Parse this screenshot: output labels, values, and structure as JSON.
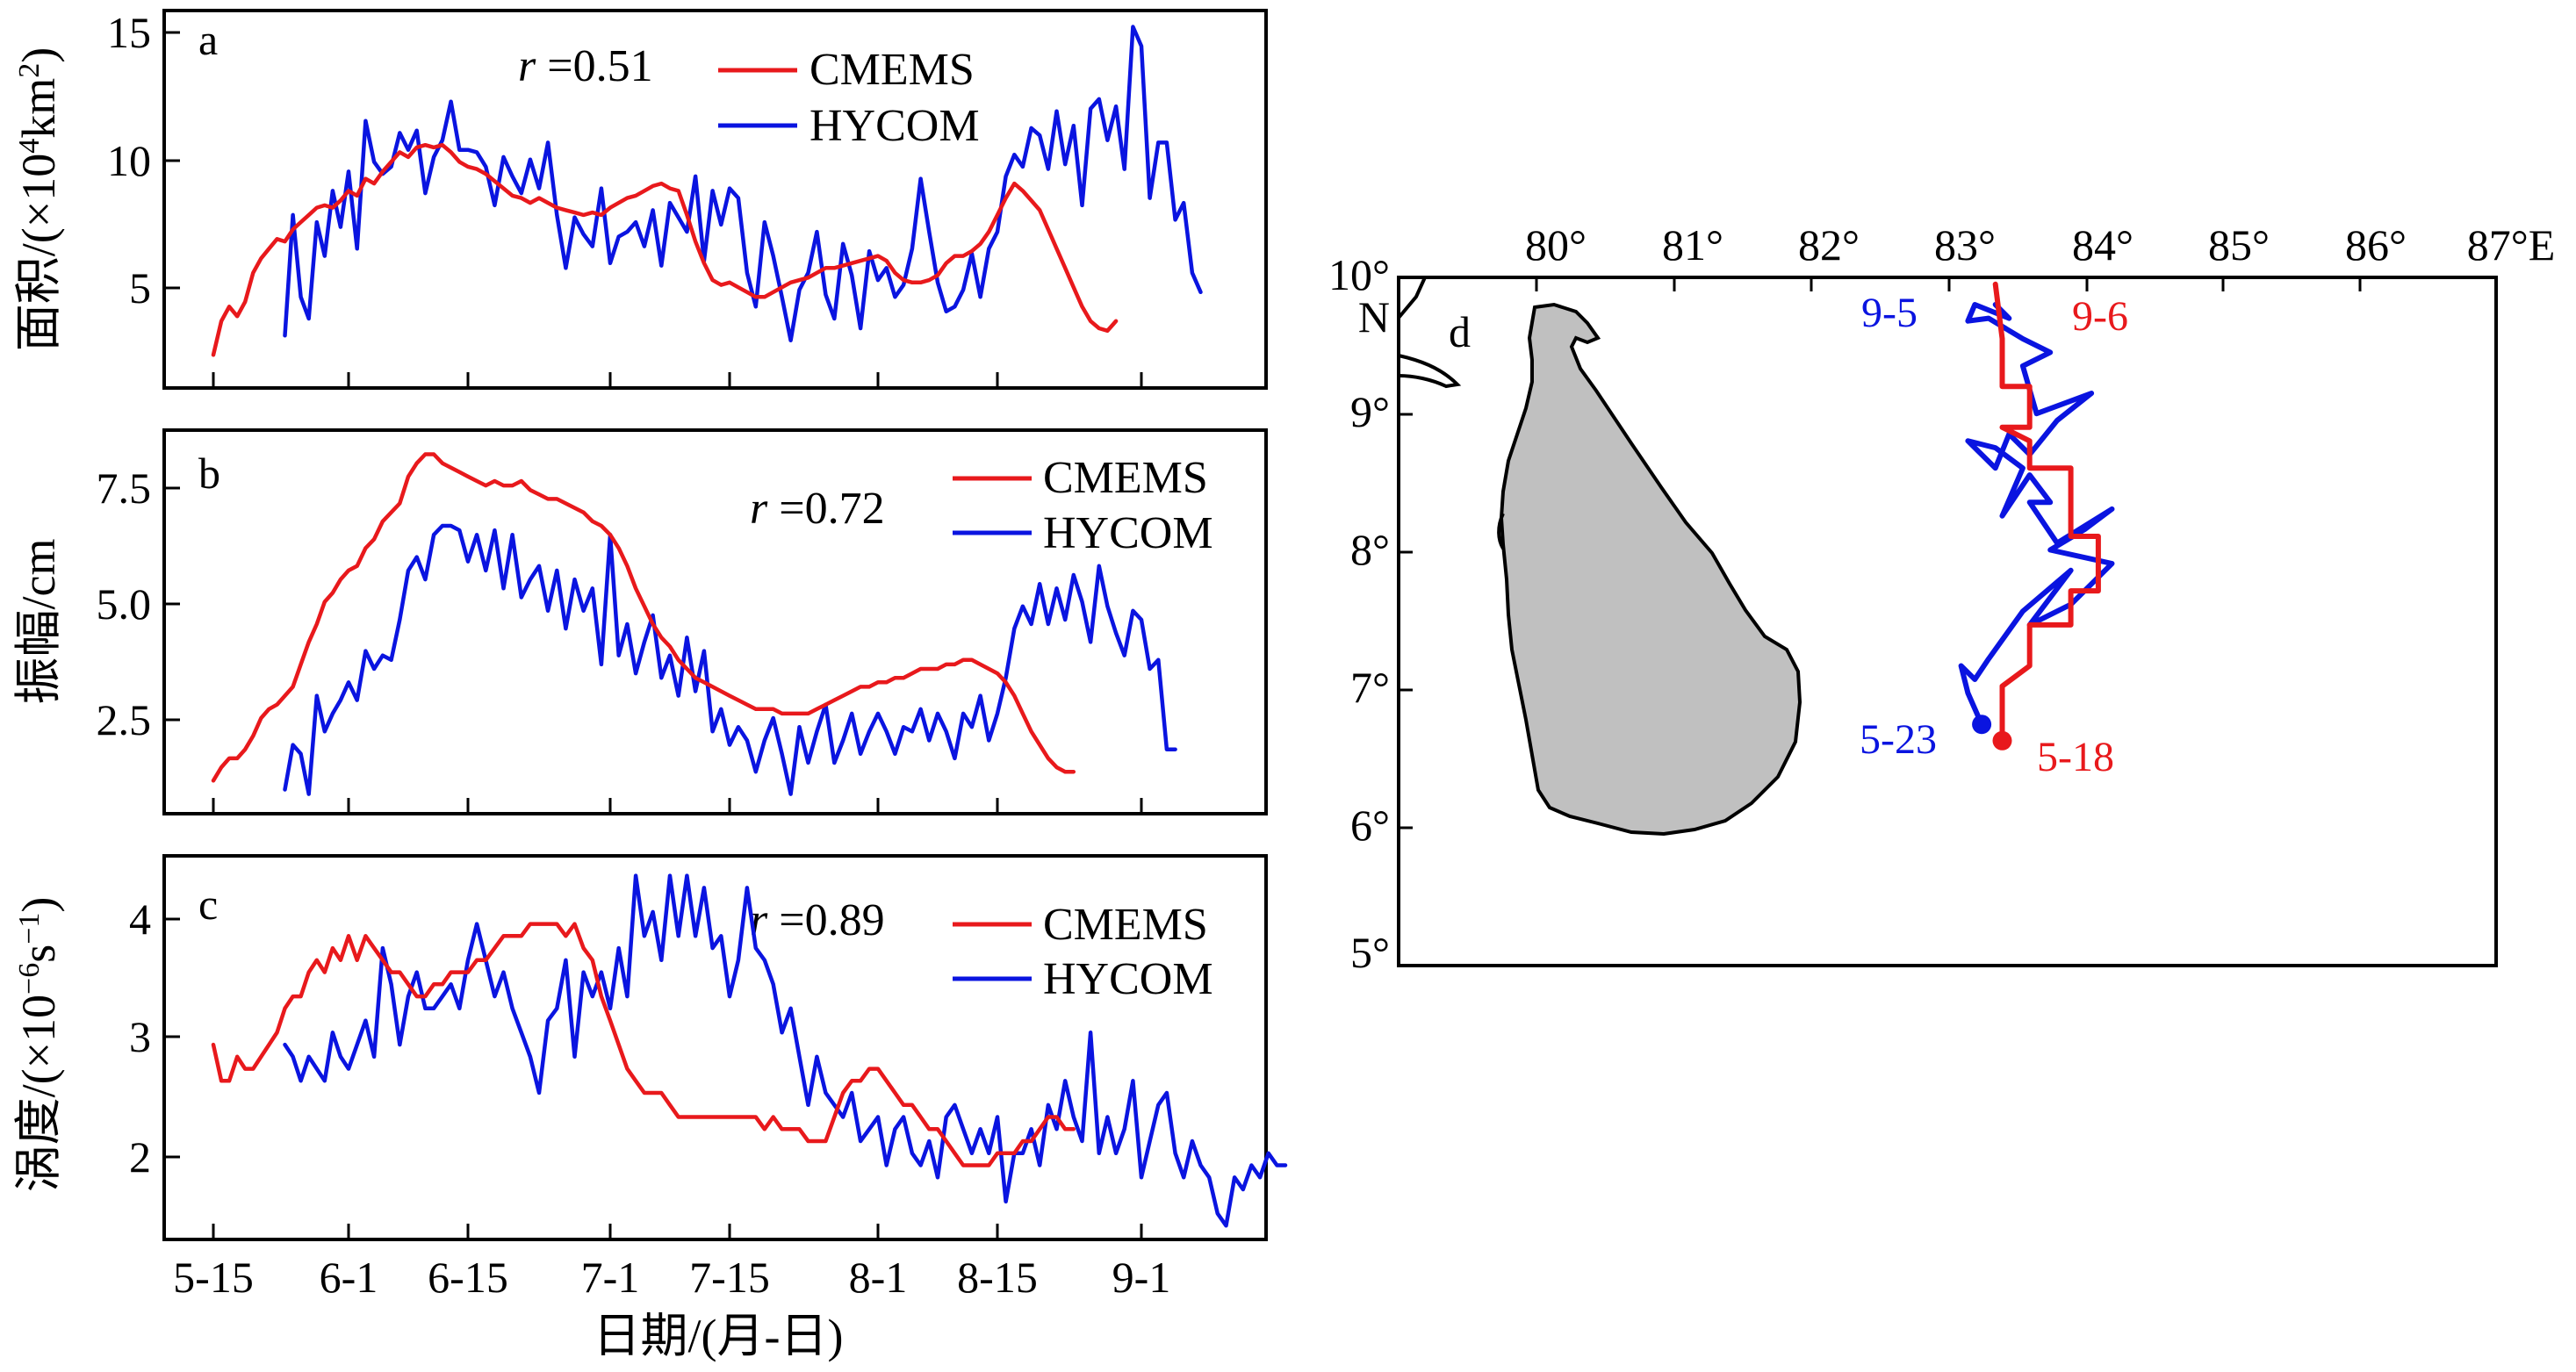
{
  "chart_data": [
    {
      "panel": "a",
      "type": "line",
      "ylabel": "面积/(×10⁴km²)",
      "ylabel_parts": {
        "pre": "面积/(×10",
        "sup": "4",
        "mid": "km",
        "sup2": "2",
        "post": ")"
      },
      "ylim": [
        0.5,
        16
      ],
      "yticks": [
        5,
        10,
        15
      ],
      "xticks": [
        "5-15",
        "6-1",
        "6-15",
        "7-1",
        "7-15",
        "8-1",
        "8-15",
        "9-1"
      ],
      "correlation": {
        "symbol": "r",
        "text": " =0.51"
      },
      "series": [
        {
          "name": "CMEMS",
          "color": "#e8191c",
          "start_day": 15,
          "values": [
            1.8,
            3.2,
            3.8,
            3.4,
            4,
            5.2,
            5.8,
            6.2,
            6.6,
            6.5,
            7,
            7.3,
            7.6,
            7.9,
            8,
            7.9,
            8.2,
            8.6,
            8.4,
            9.1,
            8.9,
            9.4,
            9.8,
            10.2,
            10,
            10.4,
            10.5,
            10.4,
            10.5,
            10.2,
            9.8,
            9.6,
            9.5,
            9.3,
            9.0,
            8.7,
            8.4,
            8.3,
            8.1,
            8.3,
            8.1,
            7.9,
            7.8,
            7.7,
            7.6,
            7.7,
            7.6,
            7.9,
            8.1,
            8.3,
            8.4,
            8.6,
            8.8,
            8.9,
            8.7,
            8.6,
            7.6,
            6.5,
            5.6,
            4.9,
            4.7,
            4.8,
            4.6,
            4.4,
            4.2,
            4.2,
            4.4,
            4.6,
            4.8,
            4.9,
            5,
            5.2,
            5.4,
            5.4,
            5.5,
            5.6,
            5.7,
            5.8,
            5.9,
            5.7,
            5.2,
            4.9,
            4.8,
            4.8,
            4.9,
            5.1,
            5.6,
            5.9,
            5.9,
            6.1,
            6.4,
            6.9,
            7.6,
            8.3,
            8.9,
            8.6,
            8.2,
            7.8,
            7,
            6.2,
            5.4,
            4.6,
            3.8,
            3.2,
            2.9,
            2.8,
            3.2
          ]
        },
        {
          "name": "HYCOM",
          "color": "#0a14e0",
          "start_day": 24,
          "values": [
            2.6,
            7.6,
            4.2,
            3.3,
            7.3,
            5.9,
            8.6,
            7.1,
            9.4,
            6.2,
            11.5,
            9.8,
            9.3,
            9.6,
            11.0,
            10.3,
            11.1,
            8.5,
            10.0,
            10.7,
            12.3,
            10.3,
            10.3,
            10.2,
            9.6,
            8.0,
            10.0,
            9.2,
            8.5,
            9.9,
            8.7,
            10.6,
            7.6,
            5.4,
            7.5,
            6.8,
            6.3,
            8.7,
            5.6,
            6.7,
            6.9,
            7.3,
            6.3,
            7.8,
            5.5,
            8.1,
            7.5,
            6.9,
            9.2,
            5.7,
            8.6,
            7.2,
            8.7,
            8.3,
            5.2,
            3.8,
            7.3,
            5.9,
            4.2,
            2.4,
            4.5,
            5.2,
            6.9,
            4.3,
            3.3,
            6.4,
            5.1,
            2.9,
            6.1,
            4.9,
            5.4,
            4.2,
            4.7,
            6.2,
            9.1,
            6.9,
            4.8,
            3.6,
            3.8,
            4.5,
            6.0,
            4.2,
            6.2,
            6.9,
            9.2,
            10.1,
            9.6,
            11.2,
            10.9,
            9.5,
            11.9,
            9.7,
            11.3,
            8.0,
            12.0,
            12.4,
            10.7,
            12.1,
            9.5,
            15.4,
            14.6,
            8.3,
            10.6,
            10.6,
            7.4,
            8.1,
            5.2,
            4.4
          ]
        }
      ]
    },
    {
      "panel": "b",
      "type": "line",
      "ylabel": "振幅/cm",
      "ylim": [
        0.4,
        8.9
      ],
      "yticks": [
        2.5,
        5.0,
        7.5
      ],
      "ytick_labels": [
        "2.5",
        "5.0",
        "7.5"
      ],
      "xticks": [
        "5-15",
        "6-1",
        "6-15",
        "7-1",
        "7-15",
        "8-1",
        "8-15",
        "9-1"
      ],
      "correlation": {
        "symbol": "r",
        "text": " =0.72"
      },
      "series": [
        {
          "name": "CMEMS",
          "color": "#e8191c",
          "start_day": 15,
          "values": [
            1.1,
            1.4,
            1.6,
            1.6,
            1.8,
            2.1,
            2.5,
            2.7,
            2.8,
            3.0,
            3.2,
            3.7,
            4.2,
            4.6,
            5.1,
            5.3,
            5.6,
            5.8,
            5.9,
            6.3,
            6.5,
            6.9,
            7.1,
            7.3,
            7.9,
            8.2,
            8.4,
            8.4,
            8.2,
            8.1,
            8.0,
            7.9,
            7.8,
            7.7,
            7.8,
            7.7,
            7.7,
            7.8,
            7.6,
            7.5,
            7.4,
            7.4,
            7.3,
            7.2,
            7.1,
            6.9,
            6.8,
            6.6,
            6.3,
            5.9,
            5.4,
            5.0,
            4.6,
            4.3,
            4.1,
            3.8,
            3.6,
            3.4,
            3.3,
            3.2,
            3.1,
            3.0,
            2.9,
            2.8,
            2.7,
            2.7,
            2.7,
            2.6,
            2.6,
            2.6,
            2.6,
            2.7,
            2.8,
            2.9,
            3.0,
            3.1,
            3.2,
            3.2,
            3.3,
            3.3,
            3.4,
            3.4,
            3.5,
            3.6,
            3.6,
            3.6,
            3.7,
            3.7,
            3.8,
            3.8,
            3.7,
            3.6,
            3.5,
            3.3,
            3.0,
            2.6,
            2.2,
            1.9,
            1.6,
            1.4,
            1.3,
            1.3
          ]
        },
        {
          "name": "HYCOM",
          "color": "#0a14e0",
          "start_day": 24,
          "values": [
            0.9,
            1.9,
            1.7,
            0.8,
            3.0,
            2.2,
            2.6,
            2.9,
            3.3,
            2.9,
            4.0,
            3.6,
            3.9,
            3.8,
            4.7,
            5.8,
            6.1,
            5.6,
            6.6,
            6.8,
            6.8,
            6.7,
            6.0,
            6.6,
            5.8,
            6.7,
            5.4,
            6.6,
            5.2,
            5.6,
            5.9,
            4.9,
            5.8,
            4.5,
            5.6,
            4.9,
            5.4,
            3.7,
            6.6,
            3.9,
            4.6,
            3.5,
            4.2,
            4.8,
            3.4,
            3.9,
            3.0,
            4.3,
            3.1,
            4.0,
            2.2,
            2.7,
            1.9,
            2.3,
            2.0,
            1.3,
            2.0,
            2.5,
            1.7,
            0.8,
            2.3,
            1.5,
            2.2,
            2.8,
            1.5,
            2.0,
            2.6,
            1.7,
            2.2,
            2.6,
            2.2,
            1.7,
            2.3,
            2.2,
            2.7,
            2.0,
            2.6,
            2.2,
            1.6,
            2.6,
            2.3,
            3.0,
            2.0,
            2.6,
            3.4,
            4.5,
            5.0,
            4.6,
            5.5,
            4.6,
            5.4,
            4.7,
            5.7,
            5.1,
            4.2,
            5.9,
            5.0,
            4.4,
            3.9,
            4.9,
            4.7,
            3.6,
            3.8,
            1.8,
            1.8
          ]
        }
      ]
    },
    {
      "panel": "c",
      "type": "line",
      "ylabel": "涡度/(×10⁻⁶s⁻¹)",
      "ylabel_parts": {
        "pre": "涡度/(×10",
        "sup": "−6",
        "mid": "s",
        "sup2": "−1",
        "post": ")"
      },
      "ylim": [
        1.3,
        4.45
      ],
      "yticks": [
        2,
        3,
        4
      ],
      "xticks": [
        "5-15",
        "6-1",
        "6-15",
        "7-1",
        "7-15",
        "8-1",
        "8-15",
        "9-1"
      ],
      "xlabel": "日期/(月-日)",
      "correlation": {
        "symbol": "r",
        "text": " =0.89"
      },
      "series": [
        {
          "name": "CMEMS",
          "color": "#e8191c",
          "start_day": 15,
          "values": [
            2.9,
            2.6,
            2.6,
            2.8,
            2.7,
            2.7,
            2.8,
            2.9,
            3.0,
            3.2,
            3.3,
            3.3,
            3.5,
            3.6,
            3.5,
            3.7,
            3.6,
            3.8,
            3.6,
            3.8,
            3.7,
            3.6,
            3.5,
            3.5,
            3.4,
            3.3,
            3.3,
            3.4,
            3.4,
            3.5,
            3.5,
            3.5,
            3.6,
            3.6,
            3.7,
            3.8,
            3.8,
            3.8,
            3.9,
            3.9,
            3.9,
            3.9,
            3.8,
            3.9,
            3.7,
            3.6,
            3.3,
            3.1,
            2.9,
            2.7,
            2.6,
            2.5,
            2.5,
            2.5,
            2.4,
            2.3,
            2.3,
            2.3,
            2.3,
            2.3,
            2.3,
            2.3,
            2.3,
            2.3,
            2.3,
            2.2,
            2.3,
            2.2,
            2.2,
            2.2,
            2.1,
            2.1,
            2.1,
            2.3,
            2.5,
            2.6,
            2.6,
            2.7,
            2.7,
            2.6,
            2.5,
            2.4,
            2.4,
            2.3,
            2.2,
            2.2,
            2.1,
            2.0,
            1.9,
            1.9,
            1.9,
            1.9,
            2.0,
            2.0,
            2.0,
            2.1,
            2.1,
            2.2,
            2.3,
            2.3,
            2.2,
            2.2
          ]
        },
        {
          "name": "HYCOM",
          "color": "#0a14e0",
          "start_day": 24,
          "values": [
            2.9,
            2.8,
            2.6,
            2.8,
            2.7,
            2.6,
            3.0,
            2.8,
            2.7,
            2.9,
            3.1,
            2.8,
            3.7,
            3.4,
            2.9,
            3.3,
            3.5,
            3.2,
            3.2,
            3.3,
            3.4,
            3.2,
            3.6,
            3.9,
            3.6,
            3.3,
            3.5,
            3.2,
            3.0,
            2.8,
            2.5,
            3.1,
            3.2,
            3.6,
            2.8,
            3.5,
            3.3,
            3.5,
            3.2,
            3.7,
            3.3,
            4.3,
            3.8,
            4.0,
            3.6,
            4.3,
            3.8,
            4.3,
            3.8,
            4.2,
            3.7,
            3.8,
            3.3,
            3.6,
            4.2,
            3.7,
            3.6,
            3.4,
            3.0,
            3.2,
            2.8,
            2.4,
            2.8,
            2.5,
            2.4,
            2.3,
            2.5,
            2.1,
            2.2,
            2.3,
            1.9,
            2.2,
            2.3,
            2.0,
            1.9,
            2.1,
            1.8,
            2.3,
            2.4,
            2.2,
            2.0,
            2.2,
            2.0,
            2.3,
            1.6,
            2.0,
            2.0,
            2.2,
            1.9,
            2.4,
            2.2,
            2.6,
            2.3,
            2.1,
            3.0,
            2.0,
            2.3,
            2.0,
            2.2,
            2.6,
            1.8,
            2.1,
            2.4,
            2.5,
            2.0,
            1.8,
            2.1,
            1.9,
            1.8,
            1.5,
            1.4,
            1.8,
            1.7,
            1.9,
            1.8,
            2.0,
            1.9,
            1.9
          ]
        }
      ]
    },
    {
      "panel": "d",
      "type": "map",
      "xticks": [
        "80°",
        "81°",
        "82°",
        "83°",
        "84°",
        "85°",
        "86°",
        "87°E"
      ],
      "yticks": [
        "10°",
        "9°",
        "8°",
        "7°",
        "6°",
        "5°"
      ],
      "y_unit": "N",
      "lon_range": [
        79,
        87
      ],
      "lat_range": [
        4.95,
        10
      ],
      "track_labels": {
        "hycom_start": "5-23",
        "hycom_end": "9-5",
        "cmems_start": "5-18",
        "cmems_end": "9-6"
      },
      "series": [
        {
          "name": "CMEMS track",
          "color": "#e8191c",
          "points": [
            [
              83.4,
              6.6
            ],
            [
              83.4,
              7.0
            ],
            [
              83.6,
              7.15
            ],
            [
              83.6,
              7.45
            ],
            [
              83.9,
              7.45
            ],
            [
              83.9,
              7.7
            ],
            [
              84.1,
              7.7
            ],
            [
              84.1,
              8.1
            ],
            [
              83.9,
              8.1
            ],
            [
              83.9,
              8.6
            ],
            [
              83.6,
              8.6
            ],
            [
              83.6,
              8.8
            ],
            [
              83.4,
              8.9
            ],
            [
              83.6,
              8.9
            ],
            [
              83.6,
              9.2
            ],
            [
              83.4,
              9.2
            ],
            [
              83.4,
              9.55
            ],
            [
              83.35,
              9.95
            ]
          ]
        },
        {
          "name": "HYCOM track",
          "color": "#0a14e0",
          "points": [
            [
              83.25,
              6.72
            ],
            [
              83.15,
              6.95
            ],
            [
              83.1,
              7.15
            ],
            [
              83.2,
              7.05
            ],
            [
              83.3,
              7.2
            ],
            [
              83.55,
              7.55
            ],
            [
              83.9,
              7.85
            ],
            [
              83.6,
              7.45
            ],
            [
              83.9,
              7.6
            ],
            [
              84.2,
              7.9
            ],
            [
              83.75,
              8.0
            ],
            [
              84.0,
              8.15
            ],
            [
              84.2,
              8.3
            ],
            [
              83.8,
              8.05
            ],
            [
              83.6,
              8.35
            ],
            [
              83.75,
              8.35
            ],
            [
              83.6,
              8.55
            ],
            [
              83.4,
              8.25
            ],
            [
              83.55,
              8.6
            ],
            [
              83.35,
              8.75
            ],
            [
              83.15,
              8.8
            ],
            [
              83.35,
              8.6
            ],
            [
              83.45,
              8.85
            ],
            [
              83.6,
              8.7
            ],
            [
              83.8,
              8.95
            ],
            [
              84.05,
              9.15
            ],
            [
              83.65,
              9.0
            ],
            [
              83.55,
              9.35
            ],
            [
              83.75,
              9.45
            ],
            [
              83.55,
              9.55
            ],
            [
              83.3,
              9.7
            ],
            [
              83.15,
              9.68
            ],
            [
              83.2,
              9.8
            ],
            [
              83.45,
              9.7
            ],
            [
              83.35,
              9.8
            ]
          ]
        }
      ]
    }
  ]
}
